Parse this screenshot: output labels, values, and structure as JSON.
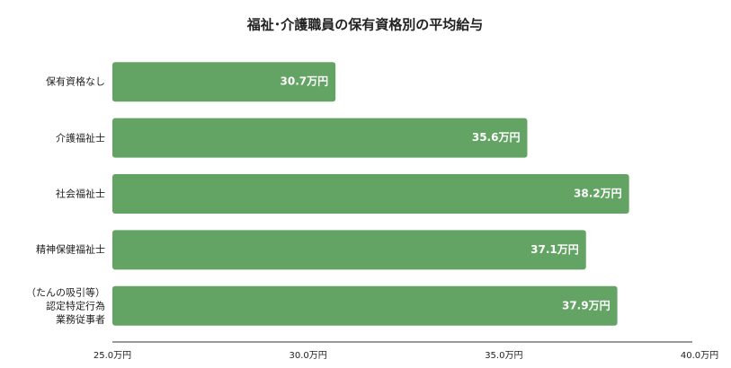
{
  "chart_data": {
    "type": "hbar",
    "title": "福祉･介護職員の保有資格別の平均給与",
    "categories": [
      "保有資格なし",
      "介護福祉士",
      "社会福祉士",
      "精神保健福祉士",
      "（たんの吸引等）\n認定特定行為\n業務従事者"
    ],
    "values": [
      30.7,
      35.6,
      38.2,
      37.1,
      37.9
    ],
    "value_labels": [
      "30.7万円",
      "35.6万円",
      "38.2万円",
      "37.1万円",
      "37.9万円"
    ],
    "color": "#63a363",
    "xlim": [
      25,
      40
    ],
    "xticks": [
      {
        "value": 25,
        "label": "25.0万円"
      },
      {
        "value": 30,
        "label": "30.0万円"
      },
      {
        "value": 35,
        "label": "35.0万円"
      },
      {
        "value": 40,
        "label": "40.0万円"
      }
    ]
  }
}
